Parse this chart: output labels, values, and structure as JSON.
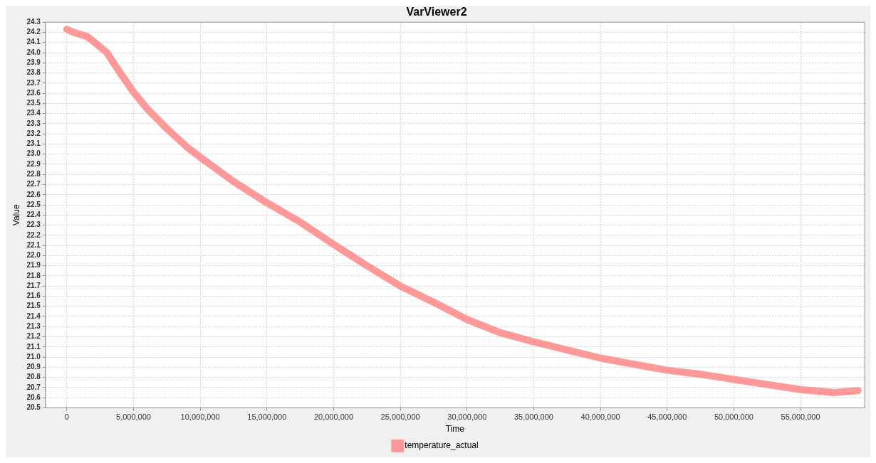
{
  "chart_data": {
    "type": "line",
    "title": "VarViewer2",
    "xlabel": "Time",
    "ylabel": "Value",
    "x": [
      0,
      500000,
      1000000,
      1500000,
      2000000,
      3000000,
      4000000,
      5000000,
      6000000,
      7500000,
      9000000,
      10000000,
      12500000,
      15000000,
      17500000,
      20000000,
      22500000,
      25000000,
      27500000,
      30000000,
      32500000,
      35000000,
      37500000,
      40000000,
      42500000,
      45000000,
      47500000,
      50000000,
      52500000,
      55000000,
      57500000,
      59300000
    ],
    "series": [
      {
        "name": "temperature_actual",
        "color": "#ff9999",
        "values": [
          24.23,
          24.2,
          24.18,
          24.16,
          24.11,
          24.0,
          23.8,
          23.61,
          23.45,
          23.25,
          23.07,
          22.97,
          22.73,
          22.52,
          22.33,
          22.11,
          21.9,
          21.7,
          21.54,
          21.37,
          21.24,
          21.15,
          21.07,
          20.99,
          20.93,
          20.87,
          20.83,
          20.78,
          20.73,
          20.68,
          20.65,
          20.67
        ]
      }
    ],
    "xlim": [
      -1600000,
      59800000
    ],
    "xticks": [
      0,
      {
        "value": 5000000,
        "label": "5,000,000"
      },
      {
        "value": 10000000,
        "label": "10,000,000"
      },
      {
        "value": 15000000,
        "label": "15,000,000"
      },
      {
        "value": 20000000,
        "label": "20,000,000"
      },
      {
        "value": 25000000,
        "label": "25,000,000"
      },
      {
        "value": 30000000,
        "label": "30,000,000"
      },
      {
        "value": 35000000,
        "label": "35,000,000"
      },
      {
        "value": 40000000,
        "label": "40,000,000"
      },
      {
        "value": 45000000,
        "label": "45,000,000"
      },
      {
        "value": 50000000,
        "label": "50,000,000"
      },
      {
        "value": 55000000,
        "label": "55,000,000"
      }
    ],
    "ylim": [
      20.5,
      24.3
    ],
    "yticks": [
      20.5,
      20.6,
      20.7,
      20.8,
      20.9,
      {
        "value": 21,
        "label": "21.0"
      },
      21.1,
      21.2,
      21.3,
      21.4,
      21.5,
      21.6,
      21.7,
      21.8,
      21.9,
      {
        "value": 22,
        "label": "22.0"
      },
      22.1,
      22.2,
      22.3,
      22.4,
      22.5,
      22.6,
      22.7,
      22.8,
      22.9,
      {
        "value": 23,
        "label": "23.0"
      },
      23.1,
      23.2,
      23.3,
      23.4,
      23.5,
      23.6,
      23.7,
      23.8,
      23.9,
      {
        "value": 24,
        "label": "24.0"
      },
      24.1,
      24.2,
      24.3
    ],
    "grid": true,
    "legend": "bottom",
    "line_style": "solid"
  }
}
